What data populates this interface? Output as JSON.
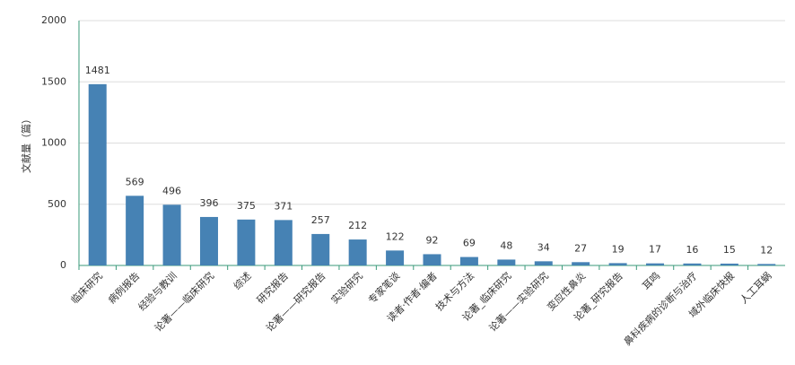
{
  "chart_data": {
    "type": "bar",
    "y_label": "文献量（篇）",
    "categories": [
      "临床研究",
      "病例报告",
      "经验与教训",
      "论著——临床研究",
      "综述",
      "研究报告",
      "论著——研究报告",
      "实验研究",
      "专家笔谈",
      "读者·作者·编者",
      "技术与方法",
      "论著_临床研究",
      "论著——实验研究",
      "变应性鼻炎",
      "论著_研究报告",
      "耳鸣",
      "鼻科疾病的诊断与治疗",
      "域外临床快报",
      "人工耳蜗"
    ],
    "values": [
      1481,
      569,
      496,
      396,
      375,
      371,
      257,
      212,
      122,
      92,
      69,
      48,
      34,
      27,
      19,
      17,
      16,
      15,
      12
    ],
    "color": "#4682b4",
    "ylim": [
      0,
      2000
    ],
    "yticks": [
      0,
      500,
      1000,
      1500,
      2000
    ],
    "grid": true
  }
}
